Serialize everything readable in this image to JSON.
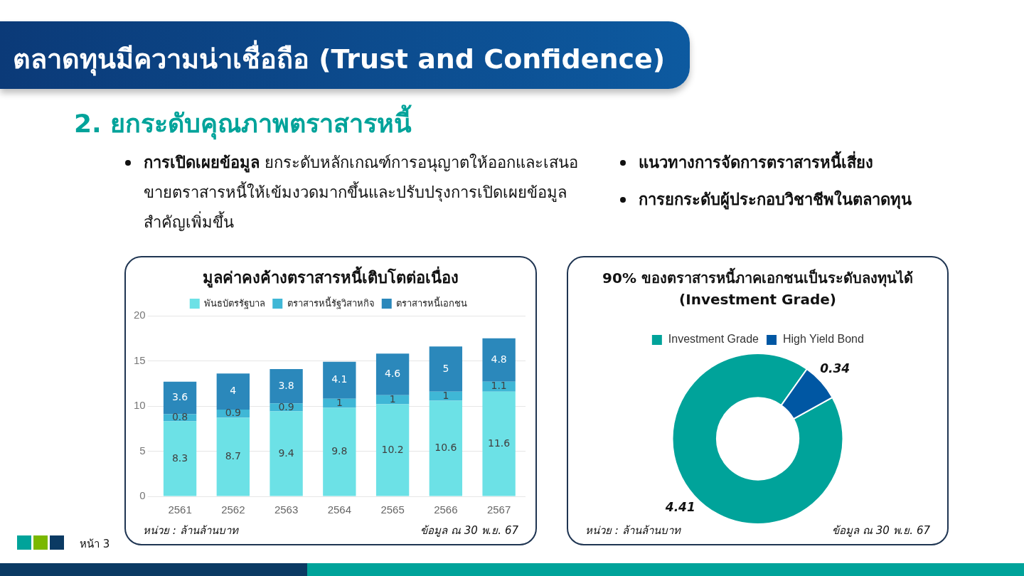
{
  "chart_data": [
    {
      "type": "other",
      "title": "ตลาดทุนมีความน่าเชื่อถือ (Trust and Confidence)",
      "subtitle": "2. ยกระดับคุณภาพตราสารหนี้",
      "annotations": [
        "การเปิดเผยข้อมูล",
        "ยกระดับหลักเกณฑ์การอนุญาตให้ออกและเสนอขายตราสารหนี้ให้เข้มงวดมากขึ้นและปรับปรุงการเปิดเผยข้อมูลสำคัญเพิ่มขึ้น",
        "แนวทางการจัดการตราสารหนี้เสี่ยง",
        "การยกระดับผู้ประกอบวิชาชีพในตลาดทุน",
        "หน้า 3"
      ]
    },
    {
      "type": "bar",
      "title": "มูลค่าคงค้างตราสารหนี้เติบโตต่อเนื่อง",
      "categories": [
        "2561",
        "2562",
        "2563",
        "2564",
        "2565",
        "2566",
        "2567"
      ],
      "stacked": true,
      "series": [
        {
          "name": "พันธบัตรรัฐบาล",
          "color": "#6ce1e6",
          "values": [
            8.3,
            8.7,
            9.4,
            9.8,
            10.2,
            10.6,
            11.6
          ]
        },
        {
          "name": "ตราสารหนี้รัฐวิสาหกิจ",
          "color": "#3fb7d6",
          "values": [
            0.8,
            0.9,
            0.9,
            1,
            1,
            1,
            1.1
          ]
        },
        {
          "name": "ตราสารหนี้เอกชน",
          "color": "#2b88bb",
          "values": [
            3.6,
            4,
            3.8,
            4.1,
            4.6,
            5,
            4.8
          ]
        }
      ],
      "ylim": [
        0,
        20
      ],
      "yticks": [
        0,
        5,
        10,
        15,
        20
      ],
      "grid": "y",
      "legend": "top",
      "data_labels": true,
      "annotations": [
        "หน่วย : ล้านล้านบาท",
        "ข้อมูล ณ 30 พ.ย. 67"
      ]
    },
    {
      "type": "donut",
      "title": "90% ของตราสารหนี้ภาคเอกชนเป็นระดับลงทุนได้ (Investment Grade)",
      "categories": [
        "Investment Grade",
        "High Yield Bond"
      ],
      "values": [
        4.41,
        0.34
      ],
      "colors": [
        "#00a39a",
        "#0057a3"
      ],
      "legend": "top",
      "data_labels": true,
      "annotations": [
        "หน่วย : ล้านล้านบาท",
        "ข้อมูล ณ 30 พ.ย. 67"
      ]
    }
  ]
}
